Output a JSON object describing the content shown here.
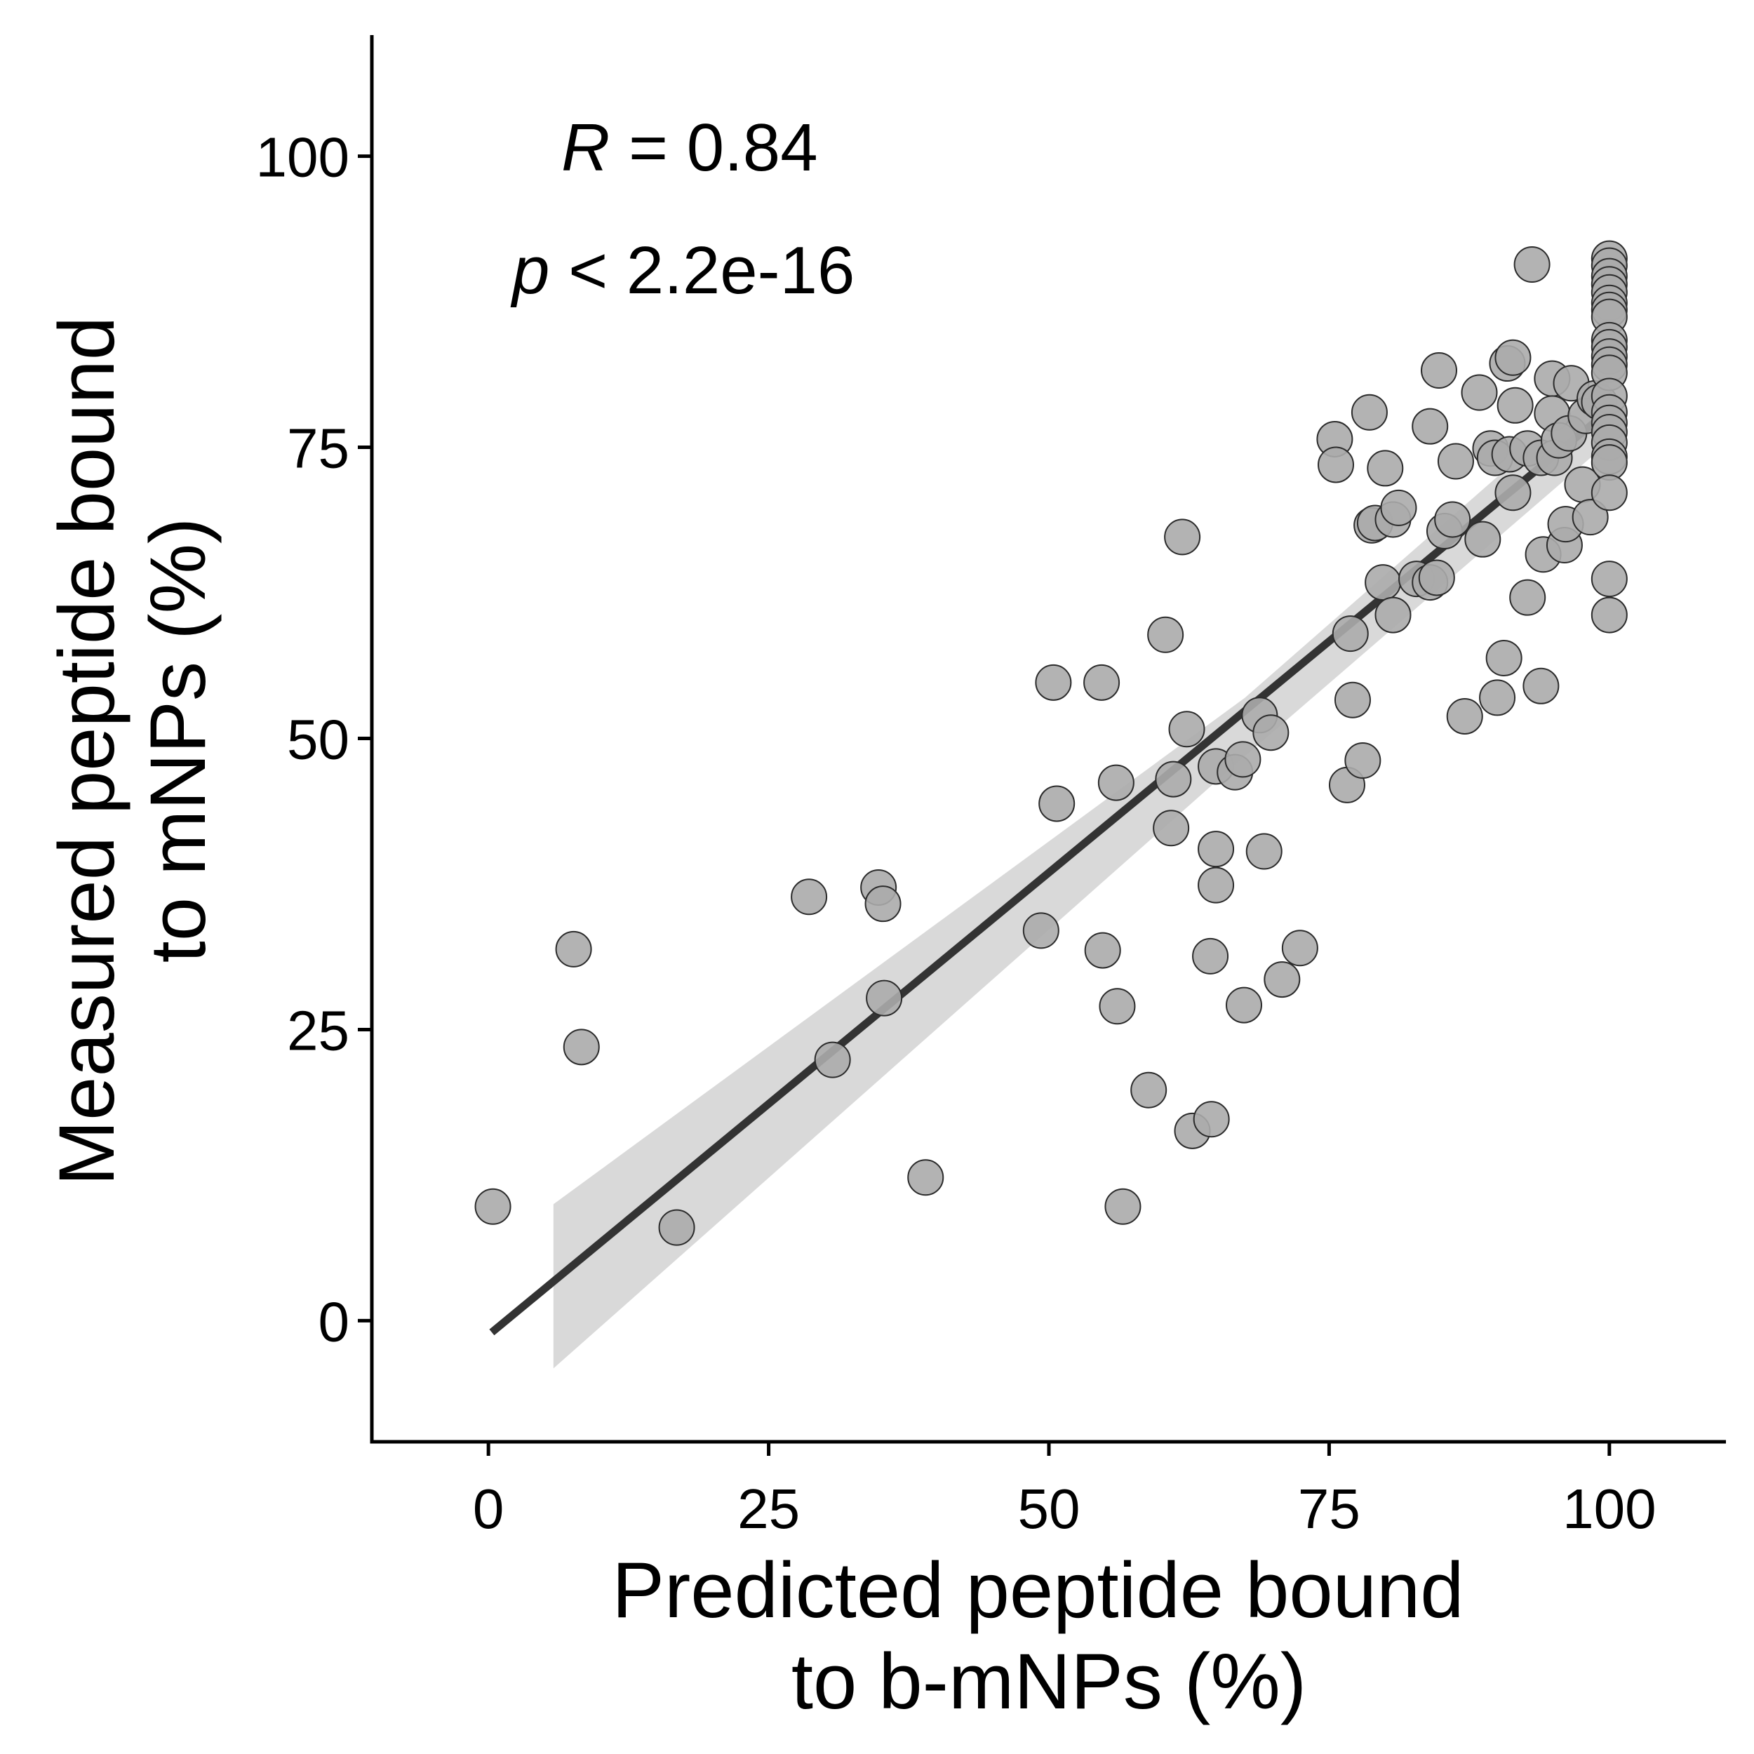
{
  "chart_data": {
    "type": "scatter",
    "title": "",
    "xlabel": [
      "Predicted peptide bound",
      "to b-mNPs (%)"
    ],
    "ylabel": [
      "Measured peptide bound",
      "to mNPs (%)"
    ],
    "xlim": [
      -10.4,
      110.4
    ],
    "ylim": [
      -10.4,
      110.4
    ],
    "x_ticks": [
      "0",
      "25",
      "50",
      "75",
      "100"
    ],
    "y_ticks": [
      "0",
      "25",
      "50",
      "75",
      "100"
    ],
    "x_tick_values": [
      0,
      25,
      50,
      75,
      100
    ],
    "y_tick_values": [
      0,
      25,
      50,
      75,
      100
    ],
    "grid": false,
    "legend": "none",
    "annotations": {
      "r_symbol": "R",
      "r_text": " = 0.84",
      "p_symbol": "p",
      "p_text": " < 2.2e-16"
    },
    "regression": {
      "x_start": 0.3,
      "y_start": -1.0,
      "x_end": 100,
      "y_end": 78.2,
      "ci": [
        {
          "x": 5.8,
          "lower": -4.1,
          "upper": 10.0
        },
        {
          "x": 67.5,
          "lower": 48.5,
          "upper": 53.5
        },
        {
          "x": 100,
          "lower": 75.5,
          "upper": 80.9
        }
      ]
    },
    "colors": {
      "points_fill": "#ababab",
      "points_stroke": "#2b2b2b",
      "line": "#333333",
      "ci_band": "#d9d9d9",
      "axis": "#000000"
    },
    "points": [
      {
        "x": 0.4,
        "y": 9.8
      },
      {
        "x": 7.6,
        "y": 31.9
      },
      {
        "x": 8.3,
        "y": 23.5
      },
      {
        "x": 16.8,
        "y": 8.0
      },
      {
        "x": 28.6,
        "y": 36.4
      },
      {
        "x": 30.7,
        "y": 22.4
      },
      {
        "x": 34.8,
        "y": 37.2
      },
      {
        "x": 35.2,
        "y": 35.8
      },
      {
        "x": 35.3,
        "y": 27.7
      },
      {
        "x": 39.0,
        "y": 12.3
      },
      {
        "x": 49.3,
        "y": 33.5
      },
      {
        "x": 50.4,
        "y": 54.8
      },
      {
        "x": 50.7,
        "y": 44.4
      },
      {
        "x": 54.7,
        "y": 54.8
      },
      {
        "x": 54.8,
        "y": 31.8
      },
      {
        "x": 56.0,
        "y": 46.2
      },
      {
        "x": 56.1,
        "y": 27.0
      },
      {
        "x": 56.6,
        "y": 9.8
      },
      {
        "x": 58.9,
        "y": 19.8
      },
      {
        "x": 60.4,
        "y": 58.9
      },
      {
        "x": 61.1,
        "y": 46.5
      },
      {
        "x": 60.9,
        "y": 42.3
      },
      {
        "x": 61.9,
        "y": 67.3
      },
      {
        "x": 62.3,
        "y": 50.8
      },
      {
        "x": 62.8,
        "y": 16.3
      },
      {
        "x": 64.5,
        "y": 17.3
      },
      {
        "x": 64.4,
        "y": 31.3
      },
      {
        "x": 64.9,
        "y": 47.6
      },
      {
        "x": 64.9,
        "y": 40.5
      },
      {
        "x": 64.9,
        "y": 37.4
      },
      {
        "x": 66.6,
        "y": 47.1
      },
      {
        "x": 67.3,
        "y": 48.2
      },
      {
        "x": 67.4,
        "y": 27.1
      },
      {
        "x": 68.8,
        "y": 52.0
      },
      {
        "x": 69.2,
        "y": 40.3
      },
      {
        "x": 69.8,
        "y": 50.5
      },
      {
        "x": 70.8,
        "y": 29.3
      },
      {
        "x": 72.4,
        "y": 32.0
      },
      {
        "x": 75.5,
        "y": 75.7
      },
      {
        "x": 75.6,
        "y": 73.5
      },
      {
        "x": 76.6,
        "y": 46.0
      },
      {
        "x": 76.9,
        "y": 59.0
      },
      {
        "x": 77.1,
        "y": 53.3
      },
      {
        "x": 78.0,
        "y": 48.1
      },
      {
        "x": 78.6,
        "y": 78.0
      },
      {
        "x": 78.8,
        "y": 68.3
      },
      {
        "x": 79.1,
        "y": 68.5
      },
      {
        "x": 79.8,
        "y": 63.4
      },
      {
        "x": 80.0,
        "y": 73.2
      },
      {
        "x": 80.7,
        "y": 60.6
      },
      {
        "x": 80.7,
        "y": 68.8
      },
      {
        "x": 81.2,
        "y": 69.8
      },
      {
        "x": 82.8,
        "y": 63.7
      },
      {
        "x": 84.0,
        "y": 63.4
      },
      {
        "x": 84.6,
        "y": 63.8
      },
      {
        "x": 84.0,
        "y": 76.8
      },
      {
        "x": 84.8,
        "y": 81.6
      },
      {
        "x": 85.3,
        "y": 67.8
      },
      {
        "x": 86.0,
        "y": 68.8
      },
      {
        "x": 86.3,
        "y": 73.8
      },
      {
        "x": 87.1,
        "y": 51.9
      },
      {
        "x": 88.4,
        "y": 79.7
      },
      {
        "x": 88.7,
        "y": 67.1
      },
      {
        "x": 89.4,
        "y": 74.9
      },
      {
        "x": 89.8,
        "y": 74.1
      },
      {
        "x": 90.0,
        "y": 53.5
      },
      {
        "x": 90.6,
        "y": 56.9
      },
      {
        "x": 90.9,
        "y": 82.2
      },
      {
        "x": 91.1,
        "y": 74.4
      },
      {
        "x": 91.4,
        "y": 71.1
      },
      {
        "x": 91.4,
        "y": 82.7
      },
      {
        "x": 91.6,
        "y": 78.6
      },
      {
        "x": 92.7,
        "y": 74.9
      },
      {
        "x": 92.7,
        "y": 62.1
      },
      {
        "x": 93.1,
        "y": 90.7
      },
      {
        "x": 93.9,
        "y": 74.1
      },
      {
        "x": 93.9,
        "y": 54.5
      },
      {
        "x": 94.1,
        "y": 65.8
      },
      {
        "x": 94.9,
        "y": 80.9
      },
      {
        "x": 94.9,
        "y": 77.9
      },
      {
        "x": 95.1,
        "y": 74.1
      },
      {
        "x": 95.5,
        "y": 75.6
      },
      {
        "x": 96.0,
        "y": 66.6
      },
      {
        "x": 96.1,
        "y": 68.4
      },
      {
        "x": 96.4,
        "y": 76.2
      },
      {
        "x": 96.6,
        "y": 80.5
      },
      {
        "x": 97.6,
        "y": 71.8
      },
      {
        "x": 97.9,
        "y": 77.7
      },
      {
        "x": 98.3,
        "y": 69.0
      },
      {
        "x": 98.7,
        "y": 79.2
      },
      {
        "x": 99.1,
        "y": 78.9
      },
      {
        "x": 100,
        "y": 91.2
      },
      {
        "x": 100,
        "y": 90.6
      },
      {
        "x": 100,
        "y": 89.7
      },
      {
        "x": 100,
        "y": 89.0
      },
      {
        "x": 100,
        "y": 88.3
      },
      {
        "x": 100,
        "y": 87.4
      },
      {
        "x": 100,
        "y": 86.8
      },
      {
        "x": 100,
        "y": 86.2
      },
      {
        "x": 100,
        "y": 84.2
      },
      {
        "x": 100,
        "y": 83.6
      },
      {
        "x": 100,
        "y": 82.8
      },
      {
        "x": 100,
        "y": 82.1
      },
      {
        "x": 100,
        "y": 81.4
      },
      {
        "x": 100,
        "y": 79.4
      },
      {
        "x": 100,
        "y": 78.0
      },
      {
        "x": 100,
        "y": 77.1
      },
      {
        "x": 100,
        "y": 76.3
      },
      {
        "x": 100,
        "y": 75.4
      },
      {
        "x": 100,
        "y": 74.2
      },
      {
        "x": 100,
        "y": 73.7
      },
      {
        "x": 100,
        "y": 71.1
      },
      {
        "x": 100,
        "y": 63.7
      },
      {
        "x": 100,
        "y": 60.6
      }
    ]
  }
}
